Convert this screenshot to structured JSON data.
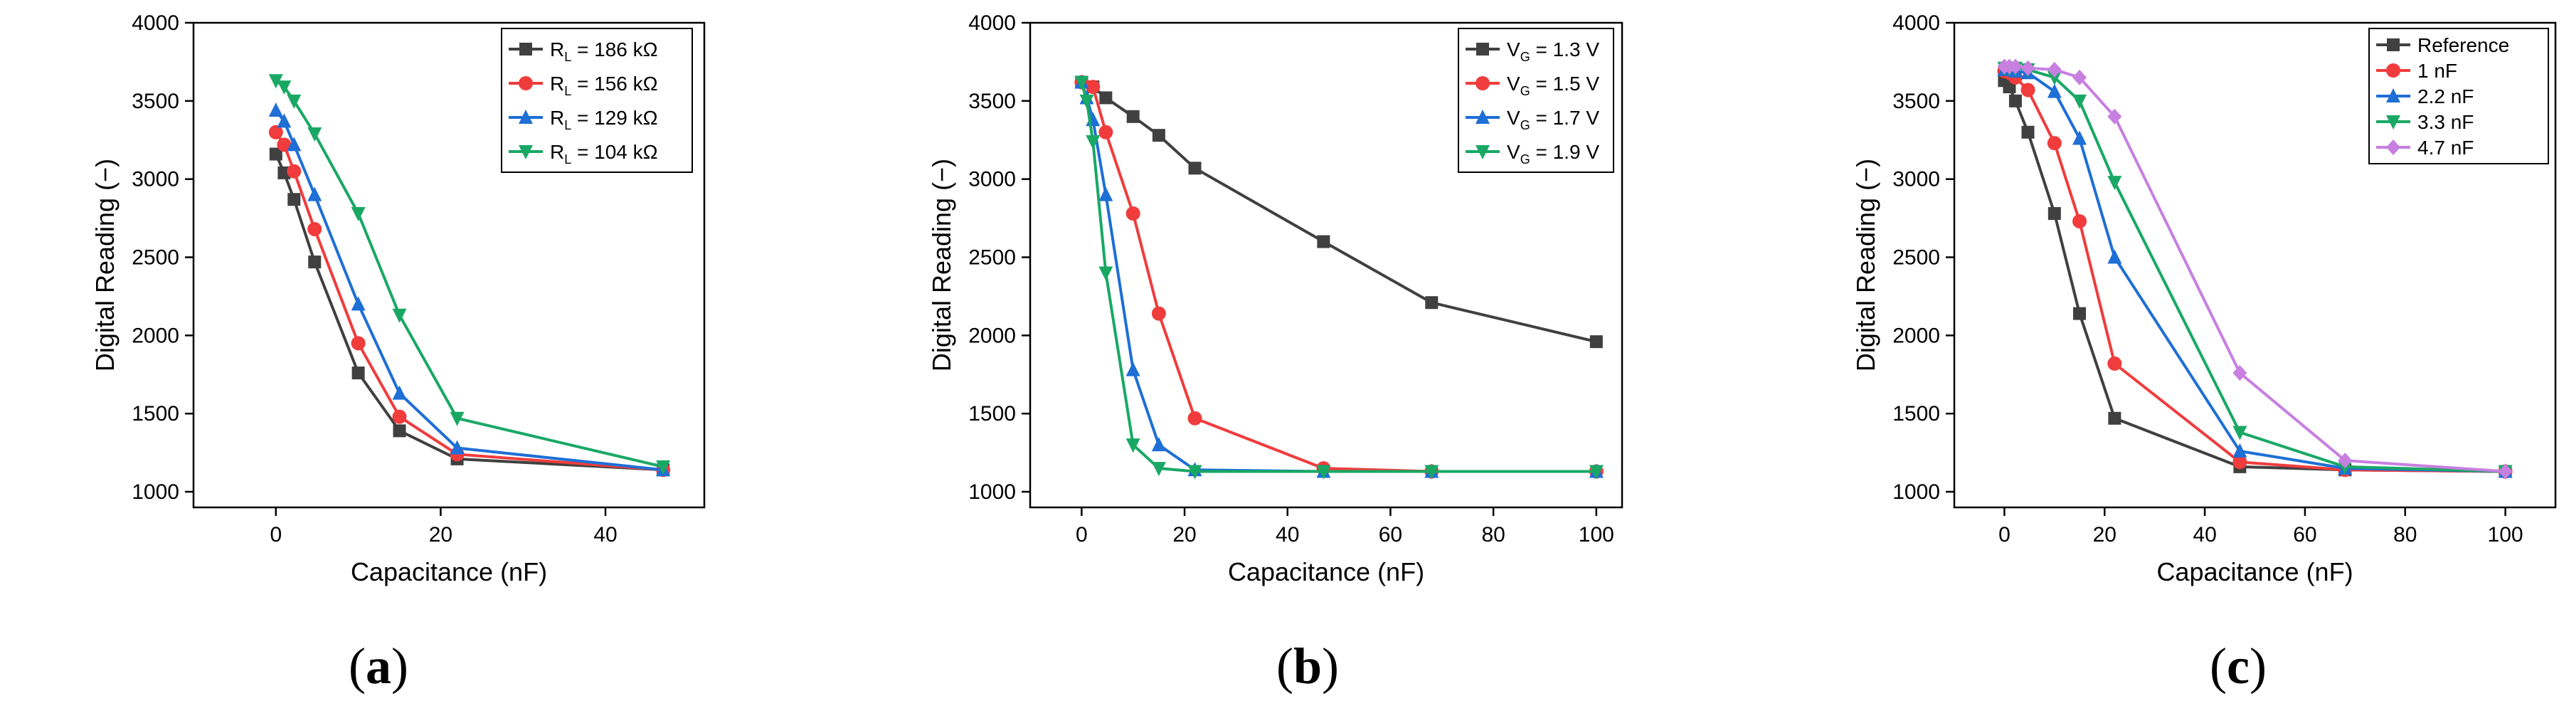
{
  "chart_data": [
    {
      "type": "line",
      "caption": "(a)",
      "caption_open": "(",
      "caption_letter": "a",
      "caption_close": ")",
      "xlabel": "Capacitance (nF)",
      "ylabel": "Digital Reading (−)",
      "xlim": [
        -10,
        52
      ],
      "ylim": [
        900,
        4000
      ],
      "xticks": [
        0,
        20,
        40
      ],
      "xtick_labels": [
        "0",
        "20",
        "40"
      ],
      "yticks": [
        1000,
        1500,
        2000,
        2500,
        3000,
        3500,
        4000
      ],
      "ytick_labels": [
        "1000",
        "1500",
        "2000",
        "2500",
        "3000",
        "3500",
        "4000"
      ],
      "legend_position": "top-right",
      "series": [
        {
          "name": "R_L = 186 kΩ",
          "legend_main": "R",
          "legend_sub": "L",
          "legend_rest": " = 186 kΩ",
          "color": "#404040",
          "marker": "square",
          "x": [
            0,
            1,
            2.2,
            4.7,
            10,
            15,
            22,
            47
          ],
          "y": [
            3160,
            3040,
            2870,
            2470,
            1760,
            1390,
            1210,
            1140
          ]
        },
        {
          "name": "R_L = 156 kΩ",
          "legend_main": "R",
          "legend_sub": "L",
          "legend_rest": " = 156 kΩ",
          "color": "#f03c3c",
          "marker": "circle",
          "x": [
            0,
            1,
            2.2,
            4.7,
            10,
            15,
            22,
            47
          ],
          "y": [
            3300,
            3220,
            3050,
            2680,
            1950,
            1480,
            1240,
            1140
          ]
        },
        {
          "name": "R_L = 129 kΩ",
          "legend_main": "R",
          "legend_sub": "L",
          "legend_rest": " = 129 kΩ",
          "color": "#1e6fd6",
          "marker": "triangle-up",
          "x": [
            0,
            1,
            2.2,
            4.7,
            10,
            15,
            22,
            47
          ],
          "y": [
            3440,
            3370,
            3220,
            2900,
            2200,
            1630,
            1280,
            1140
          ]
        },
        {
          "name": "R_L = 104 kΩ",
          "legend_main": "R",
          "legend_sub": "L",
          "legend_rest": " = 104 kΩ",
          "color": "#19a864",
          "marker": "triangle-down",
          "x": [
            0,
            1,
            2.2,
            4.7,
            10,
            15,
            22,
            47
          ],
          "y": [
            3630,
            3590,
            3500,
            3290,
            2780,
            2130,
            1470,
            1160
          ]
        }
      ]
    },
    {
      "type": "line",
      "caption": "(b)",
      "caption_open": "(",
      "caption_letter": "b",
      "caption_close": ")",
      "xlabel": "Capacitance (nF)",
      "ylabel": "Digital Reading (−)",
      "xlim": [
        -10,
        105
      ],
      "ylim": [
        900,
        4000
      ],
      "xticks": [
        0,
        20,
        40,
        60,
        80,
        100
      ],
      "xtick_labels": [
        "0",
        "20",
        "40",
        "60",
        "80",
        "100"
      ],
      "yticks": [
        1000,
        1500,
        2000,
        2500,
        3000,
        3500,
        4000
      ],
      "ytick_labels": [
        "1000",
        "1500",
        "2000",
        "2500",
        "3000",
        "3500",
        "4000"
      ],
      "legend_position": "top-right",
      "series": [
        {
          "name": "V_G = 1.3 V",
          "legend_main": "V",
          "legend_sub": "G",
          "legend_rest": " = 1.3 V",
          "color": "#404040",
          "marker": "square",
          "x": [
            0,
            2.2,
            4.7,
            10,
            15,
            22,
            47,
            68,
            100
          ],
          "y": [
            3620,
            3590,
            3520,
            3400,
            3280,
            3070,
            2600,
            2210,
            1960
          ]
        },
        {
          "name": "V_G = 1.5 V",
          "legend_main": "V",
          "legend_sub": "G",
          "legend_rest": " = 1.5 V",
          "color": "#f03c3c",
          "marker": "circle",
          "x": [
            0,
            2.2,
            4.7,
            10,
            15,
            22,
            47,
            68,
            100
          ],
          "y": [
            3620,
            3590,
            3300,
            2780,
            2140,
            1470,
            1150,
            1130,
            1130
          ]
        },
        {
          "name": "V_G = 1.7 V",
          "legend_main": "V",
          "legend_sub": "G",
          "legend_rest": " = 1.7 V",
          "color": "#1e6fd6",
          "marker": "triangle-up",
          "x": [
            0,
            1,
            2.2,
            4.7,
            10,
            15,
            22,
            47,
            68,
            100
          ],
          "y": [
            3620,
            3520,
            3380,
            2900,
            1780,
            1300,
            1140,
            1130,
            1130,
            1130
          ]
        },
        {
          "name": "V_G = 1.9 V",
          "legend_main": "V",
          "legend_sub": "G",
          "legend_rest": " = 1.9 V",
          "color": "#19a864",
          "marker": "triangle-down",
          "x": [
            0,
            1,
            2.2,
            4.7,
            10,
            15,
            22,
            47,
            68,
            100
          ],
          "y": [
            3620,
            3500,
            3240,
            2400,
            1300,
            1150,
            1130,
            1130,
            1130,
            1130
          ]
        }
      ]
    },
    {
      "type": "line",
      "caption": "(c)",
      "caption_open": "(",
      "caption_letter": "c",
      "caption_close": ")",
      "xlabel": "Capacitance (nF)",
      "ylabel": "Digital Reading (−)",
      "xlim": [
        -10,
        110
      ],
      "ylim": [
        900,
        4000
      ],
      "xticks": [
        0,
        20,
        40,
        60,
        80,
        100
      ],
      "xtick_labels": [
        "0",
        "20",
        "40",
        "60",
        "80",
        "100"
      ],
      "yticks": [
        1000,
        1500,
        2000,
        2500,
        3000,
        3500,
        4000
      ],
      "ytick_labels": [
        "1000",
        "1500",
        "2000",
        "2500",
        "3000",
        "3500",
        "4000"
      ],
      "legend_position": "top-right",
      "series": [
        {
          "name": "Reference",
          "legend_main": "Reference",
          "legend_sub": "",
          "legend_rest": "",
          "color": "#404040",
          "marker": "square",
          "x": [
            0,
            1,
            2.2,
            4.7,
            10,
            15,
            22,
            47,
            68,
            100
          ],
          "y": [
            3630,
            3590,
            3500,
            3300,
            2780,
            2140,
            1470,
            1160,
            1140,
            1130
          ]
        },
        {
          "name": "1 nF",
          "legend_main": "1 nF",
          "legend_sub": "",
          "legend_rest": "",
          "color": "#f03c3c",
          "marker": "circle",
          "x": [
            0,
            1,
            2.2,
            4.7,
            10,
            15,
            22,
            47,
            68,
            100
          ],
          "y": [
            3690,
            3680,
            3650,
            3570,
            3230,
            2730,
            1820,
            1190,
            1140,
            1130
          ]
        },
        {
          "name": "2.2 nF",
          "legend_main": "2.2 nF",
          "legend_sub": "",
          "legend_rest": "",
          "color": "#1e6fd6",
          "marker": "triangle-up",
          "x": [
            0,
            1,
            2.2,
            4.7,
            10,
            15,
            22,
            47,
            68,
            100
          ],
          "y": [
            3700,
            3700,
            3690,
            3680,
            3560,
            3260,
            2500,
            1260,
            1150,
            1130
          ]
        },
        {
          "name": "3.3 nF",
          "legend_main": "3.3 nF",
          "legend_sub": "",
          "legend_rest": "",
          "color": "#19a864",
          "marker": "triangle-down",
          "x": [
            0,
            1,
            2.2,
            4.7,
            10,
            15,
            22,
            47,
            68,
            100
          ],
          "y": [
            3710,
            3710,
            3710,
            3700,
            3650,
            3500,
            2980,
            1380,
            1160,
            1130
          ]
        },
        {
          "name": "4.7 nF",
          "legend_main": "4.7 nF",
          "legend_sub": "",
          "legend_rest": "",
          "color": "#c77fe0",
          "marker": "diamond",
          "x": [
            0,
            1,
            2.2,
            4.7,
            10,
            15,
            22,
            47,
            68,
            100
          ],
          "y": [
            3720,
            3720,
            3720,
            3710,
            3700,
            3650,
            3400,
            1760,
            1200,
            1130
          ]
        }
      ]
    }
  ]
}
